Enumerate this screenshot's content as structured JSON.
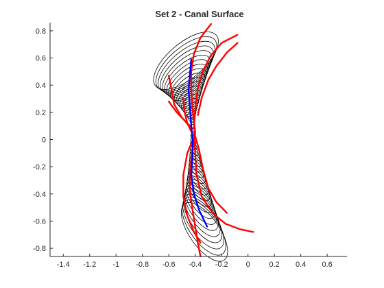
{
  "chart_data": {
    "type": "line",
    "title": "Set 2 - Canal Surface",
    "xlabel": "",
    "ylabel": "",
    "xlim": [
      -1.5,
      0.75
    ],
    "ylim": [
      -0.86,
      0.86
    ],
    "xticks": [
      -1.4,
      -1.2,
      -1,
      -0.8,
      -0.6,
      -0.4,
      -0.2,
      0,
      0.2,
      0.4,
      0.6
    ],
    "yticks": [
      -0.8,
      -0.6,
      -0.4,
      -0.2,
      0,
      0.2,
      0.4,
      0.6,
      0.8
    ],
    "grid": false,
    "box": "axes-only",
    "colors": {
      "rings": "#000000",
      "red_curves": "#ff0000",
      "blue_curve": "#0000ff",
      "axis": "#262626"
    },
    "rings": {
      "description_count": 44,
      "upper": {
        "center_start": [
          -0.42,
          0.12
        ],
        "center_end": [
          -0.47,
          0.58
        ],
        "minor_start": 0.01,
        "minor_end": 0.13,
        "major_start": 0.01,
        "major_end": 0.3,
        "tilt_deg": -40
      },
      "lower": {
        "center_start": [
          -0.42,
          0.02
        ],
        "center_end": [
          -0.33,
          -0.68
        ],
        "minor_start": 0.01,
        "minor_end": 0.11,
        "major_start": 0.02,
        "major_end": 0.26,
        "tilt_deg": 55
      }
    },
    "series": [
      {
        "color": "blue",
        "points": [
          [
            -0.43,
            0.59
          ],
          [
            -0.44,
            0.48
          ],
          [
            -0.45,
            0.36
          ],
          [
            -0.44,
            0.24
          ],
          [
            -0.43,
            0.1
          ],
          [
            -0.42,
            0.0
          ],
          [
            -0.42,
            -0.12
          ],
          [
            -0.43,
            -0.26
          ],
          [
            -0.41,
            -0.4
          ],
          [
            -0.37,
            -0.52
          ],
          [
            -0.31,
            -0.64
          ]
        ]
      },
      {
        "color": "red",
        "points": [
          [
            -0.28,
            0.85
          ],
          [
            -0.36,
            0.75
          ],
          [
            -0.41,
            0.63
          ],
          [
            -0.43,
            0.5
          ],
          [
            -0.43,
            0.36
          ],
          [
            -0.42,
            0.22
          ],
          [
            -0.4,
            0.06
          ]
        ]
      },
      {
        "color": "red",
        "points": [
          [
            -0.08,
            0.77
          ],
          [
            -0.2,
            0.71
          ],
          [
            -0.28,
            0.62
          ],
          [
            -0.34,
            0.51
          ],
          [
            -0.38,
            0.38
          ],
          [
            -0.4,
            0.22
          ],
          [
            -0.41,
            0.08
          ]
        ]
      },
      {
        "color": "red",
        "points": [
          [
            -0.08,
            0.71
          ],
          [
            -0.16,
            0.64
          ],
          [
            -0.24,
            0.54
          ],
          [
            -0.3,
            0.44
          ],
          [
            -0.35,
            0.31
          ],
          [
            -0.38,
            0.18
          ]
        ]
      },
      {
        "color": "red",
        "points": [
          [
            -0.6,
            0.47
          ],
          [
            -0.58,
            0.37
          ],
          [
            -0.56,
            0.26
          ],
          [
            -0.5,
            0.16
          ],
          [
            -0.42,
            0.08
          ]
        ]
      },
      {
        "color": "red",
        "points": [
          [
            -0.6,
            0.28
          ],
          [
            -0.54,
            0.2
          ],
          [
            -0.48,
            0.14
          ],
          [
            -0.43,
            0.08
          ]
        ]
      },
      {
        "color": "red",
        "points": [
          [
            -0.49,
            0.3
          ],
          [
            -0.48,
            0.2
          ],
          [
            -0.46,
            0.12
          ],
          [
            -0.43,
            0.06
          ]
        ]
      },
      {
        "color": "red",
        "points": [
          [
            -0.4,
            0.05
          ],
          [
            -0.42,
            -0.08
          ],
          [
            -0.44,
            -0.24
          ],
          [
            -0.44,
            -0.38
          ],
          [
            -0.42,
            -0.52
          ],
          [
            -0.4,
            -0.64
          ],
          [
            -0.38,
            -0.76
          ],
          [
            -0.36,
            -0.86
          ]
        ]
      },
      {
        "color": "red",
        "points": [
          [
            -0.4,
            0.04
          ],
          [
            -0.46,
            -0.1
          ],
          [
            -0.49,
            -0.26
          ],
          [
            -0.49,
            -0.42
          ],
          [
            -0.46,
            -0.56
          ],
          [
            -0.41,
            -0.68
          ],
          [
            -0.36,
            -0.76
          ]
        ]
      },
      {
        "color": "red",
        "points": [
          [
            -0.41,
            0.06
          ],
          [
            -0.4,
            -0.1
          ],
          [
            -0.39,
            -0.26
          ],
          [
            -0.35,
            -0.42
          ],
          [
            -0.27,
            -0.54
          ],
          [
            -0.17,
            -0.62
          ],
          [
            -0.06,
            -0.66
          ],
          [
            0.04,
            -0.68
          ]
        ]
      },
      {
        "color": "red",
        "points": [
          [
            -0.41,
            0.06
          ],
          [
            -0.37,
            -0.08
          ],
          [
            -0.34,
            -0.22
          ],
          [
            -0.3,
            -0.36
          ],
          [
            -0.24,
            -0.46
          ],
          [
            -0.16,
            -0.54
          ]
        ]
      }
    ]
  }
}
